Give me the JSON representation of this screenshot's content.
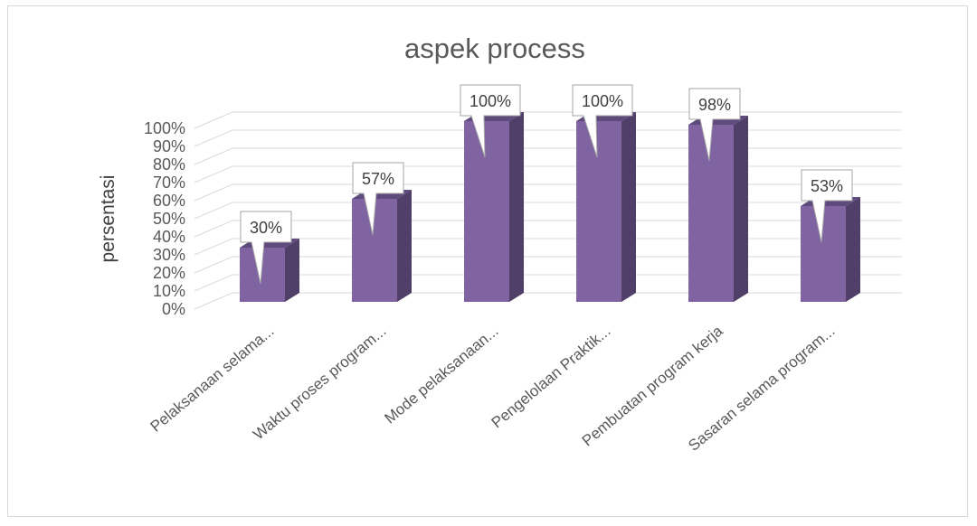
{
  "chart_data": {
    "type": "bar",
    "title": "aspek process",
    "ylabel": "persentasi",
    "xlabel": "",
    "categories": [
      "Pelaksanaan selama...",
      "Waktu proses program...",
      "Mode pelaksanaan...",
      "Pengelolaan Praktik...",
      "Pembuatan program kerja",
      "Sasaran selama program..."
    ],
    "values": [
      30,
      57,
      100,
      100,
      98,
      53
    ],
    "data_labels": [
      "30%",
      "57%",
      "100%",
      "100%",
      "98%",
      "53%"
    ],
    "y_ticks": [
      "0%",
      "10%",
      "20%",
      "30%",
      "40%",
      "50%",
      "60%",
      "70%",
      "80%",
      "90%",
      "100%"
    ],
    "ylim": [
      0,
      100
    ],
    "grid": true,
    "legend": "none",
    "colors": {
      "bar_front": "#8064a2",
      "bar_side": "#4f3f69",
      "bar_top": "#5f4a7d",
      "gridline": "#d9d9d9"
    }
  }
}
